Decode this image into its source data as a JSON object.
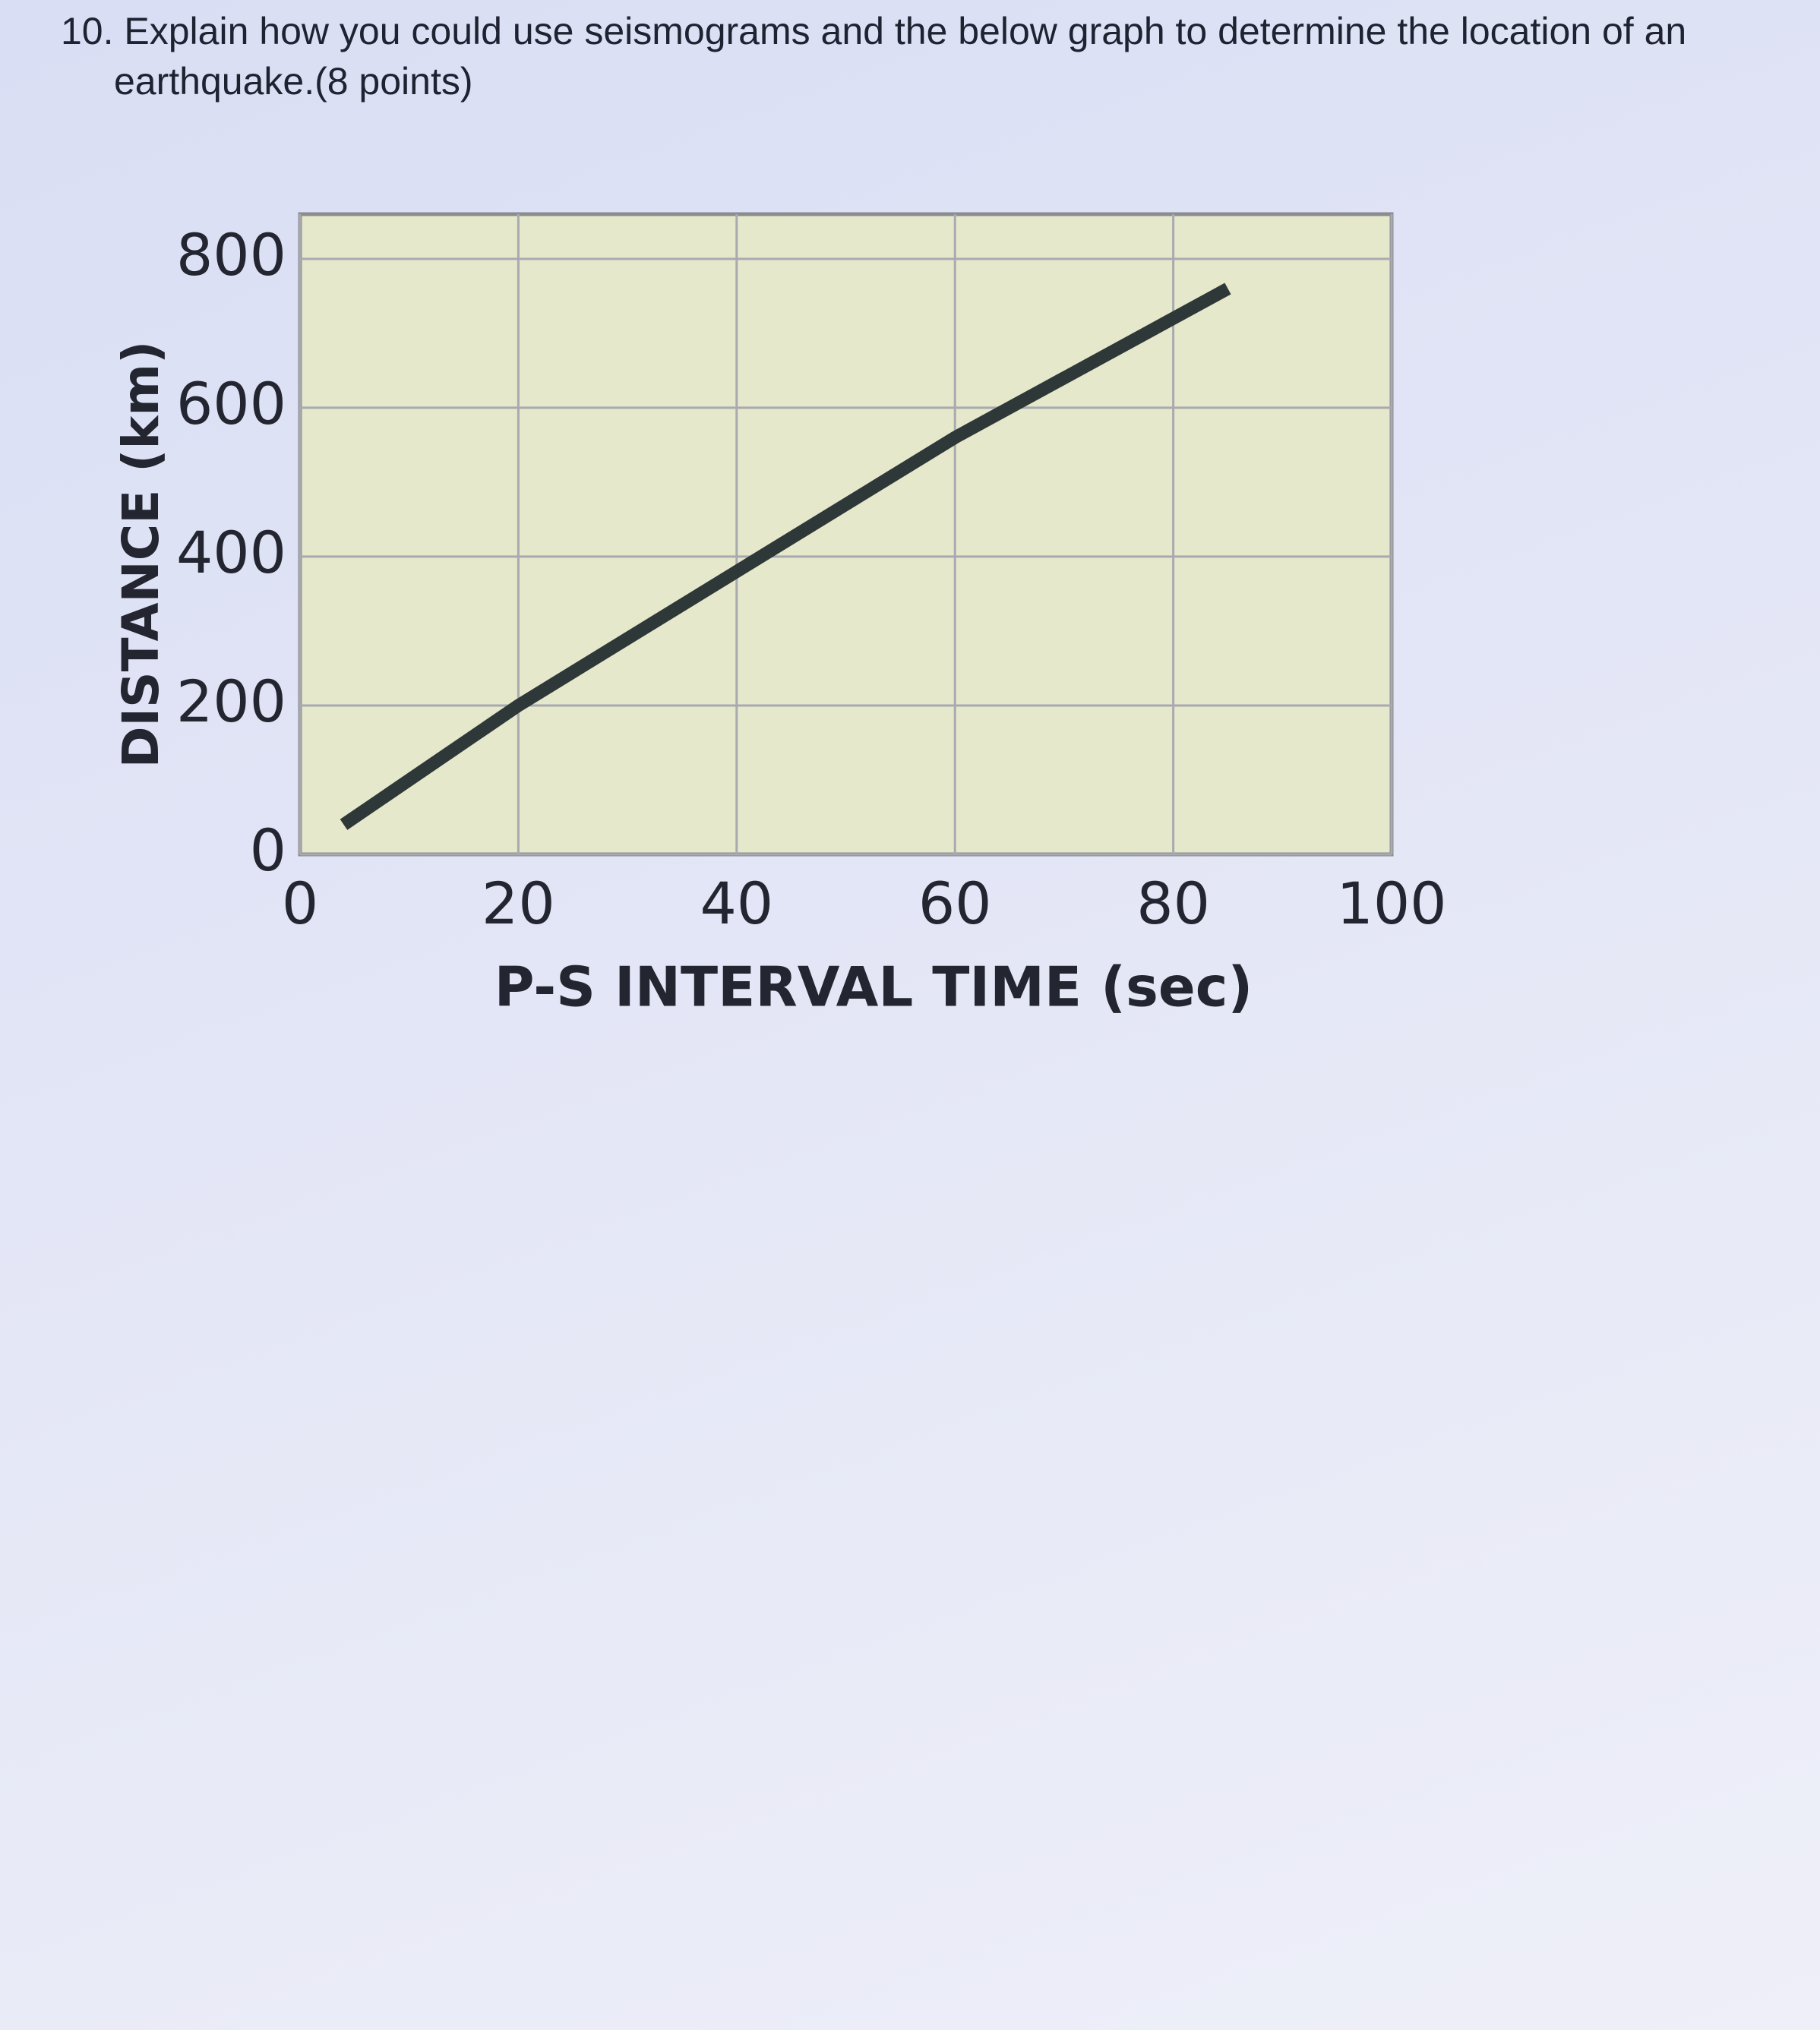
{
  "question": "10. Explain how you could use seismograms and the below graph to determine the location of an earthquake.(8 points)",
  "chart_data": {
    "type": "line",
    "x_label": "P-S INTERVAL TIME (sec)",
    "y_label": "DISTANCE (km)",
    "x": [
      4,
      20,
      40,
      60,
      85
    ],
    "values": [
      40,
      200,
      380,
      560,
      760
    ],
    "color": "#2e3838",
    "xlim": [
      0,
      100
    ],
    "xticks": [
      0,
      20,
      40,
      60,
      80,
      100
    ],
    "ylim": [
      0,
      860
    ],
    "yticks": [
      0,
      200,
      400,
      600,
      800
    ],
    "grid": true
  }
}
